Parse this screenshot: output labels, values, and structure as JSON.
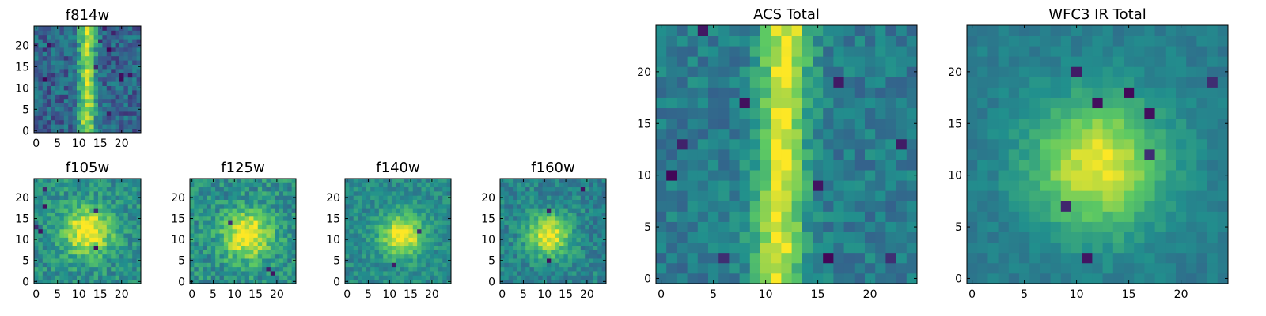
{
  "figure": {
    "colormap": "viridis",
    "colormap_stops": [
      "#440154",
      "#3b528b",
      "#21908d",
      "#5dc963",
      "#fde725"
    ]
  },
  "chart_data": [
    {
      "type": "heatmap",
      "title": "f814w",
      "grid_size": 25,
      "xticks": [
        0,
        5,
        10,
        15,
        20
      ],
      "yticks": [
        0,
        5,
        10,
        15,
        20
      ],
      "xlim": [
        -0.5,
        24.5
      ],
      "ylim": [
        -0.5,
        24.5
      ],
      "feature": {
        "kind": "streak",
        "center_x": 12.0,
        "sigma": 1.5,
        "slope": 0.0,
        "noise": 0.32,
        "base": 0.32,
        "seed": 11,
        "dark_cells": 12
      }
    },
    {
      "type": "heatmap",
      "title": "f105w",
      "grid_size": 25,
      "xticks": [
        0,
        5,
        10,
        15,
        20
      ],
      "yticks": [
        0,
        5,
        10,
        15,
        20
      ],
      "xlim": [
        -0.5,
        24.5
      ],
      "ylim": [
        -0.5,
        24.5
      ],
      "feature": {
        "kind": "blob",
        "center_x": 12.0,
        "center_y": 12.0,
        "sigma": 4.0,
        "noise": 0.28,
        "base": 0.5,
        "seed": 23,
        "dark_cells": 6
      }
    },
    {
      "type": "heatmap",
      "title": "f125w",
      "grid_size": 25,
      "xticks": [
        0,
        5,
        10,
        15,
        20
      ],
      "yticks": [
        0,
        5,
        10,
        15,
        20
      ],
      "xlim": [
        -0.5,
        24.5
      ],
      "ylim": [
        -0.5,
        24.5
      ],
      "feature": {
        "kind": "blob",
        "center_x": 13.0,
        "center_y": 11.0,
        "sigma": 4.0,
        "noise": 0.3,
        "base": 0.5,
        "seed": 37,
        "dark_cells": 3
      }
    },
    {
      "type": "heatmap",
      "title": "f140w",
      "grid_size": 25,
      "xticks": [
        0,
        5,
        10,
        15,
        20
      ],
      "yticks": [
        0,
        5,
        10,
        15,
        20
      ],
      "xlim": [
        -0.5,
        24.5
      ],
      "ylim": [
        -0.5,
        24.5
      ],
      "feature": {
        "kind": "blob",
        "center_x": 13.0,
        "center_y": 11.0,
        "sigma": 3.5,
        "noise": 0.22,
        "base": 0.48,
        "seed": 41,
        "dark_cells": 2
      }
    },
    {
      "type": "heatmap",
      "title": "f160w",
      "grid_size": 25,
      "xticks": [
        0,
        5,
        10,
        15,
        20
      ],
      "yticks": [
        0,
        5,
        10,
        15,
        20
      ],
      "xlim": [
        -0.5,
        24.5
      ],
      "ylim": [
        -0.5,
        24.5
      ],
      "feature": {
        "kind": "blob",
        "center_x": 11.0,
        "center_y": 11.0,
        "sigma": 3.5,
        "noise": 0.25,
        "base": 0.45,
        "seed": 53,
        "dark_cells": 3
      }
    },
    {
      "type": "heatmap",
      "title": "ACS Total",
      "grid_size": 25,
      "xticks": [
        0,
        5,
        10,
        15,
        20
      ],
      "yticks": [
        0,
        5,
        10,
        15,
        20
      ],
      "xlim": [
        -0.5,
        24.5
      ],
      "ylim": [
        -0.5,
        24.5
      ],
      "feature": {
        "kind": "streak",
        "center_x": 11.5,
        "sigma": 1.6,
        "slope": 0.04,
        "noise": 0.22,
        "base": 0.42,
        "seed": 67,
        "dark_cells": 10
      }
    },
    {
      "type": "heatmap",
      "title": "WFC3 IR Total",
      "grid_size": 25,
      "xticks": [
        0,
        5,
        10,
        15,
        20
      ],
      "yticks": [
        0,
        5,
        10,
        15,
        20
      ],
      "xlim": [
        -0.5,
        24.5
      ],
      "ylim": [
        -0.5,
        24.5
      ],
      "feature": {
        "kind": "blob",
        "center_x": 12.0,
        "center_y": 11.0,
        "sigma": 4.5,
        "noise": 0.12,
        "base": 0.42,
        "seed": 79,
        "dark_cells": 8
      }
    }
  ]
}
